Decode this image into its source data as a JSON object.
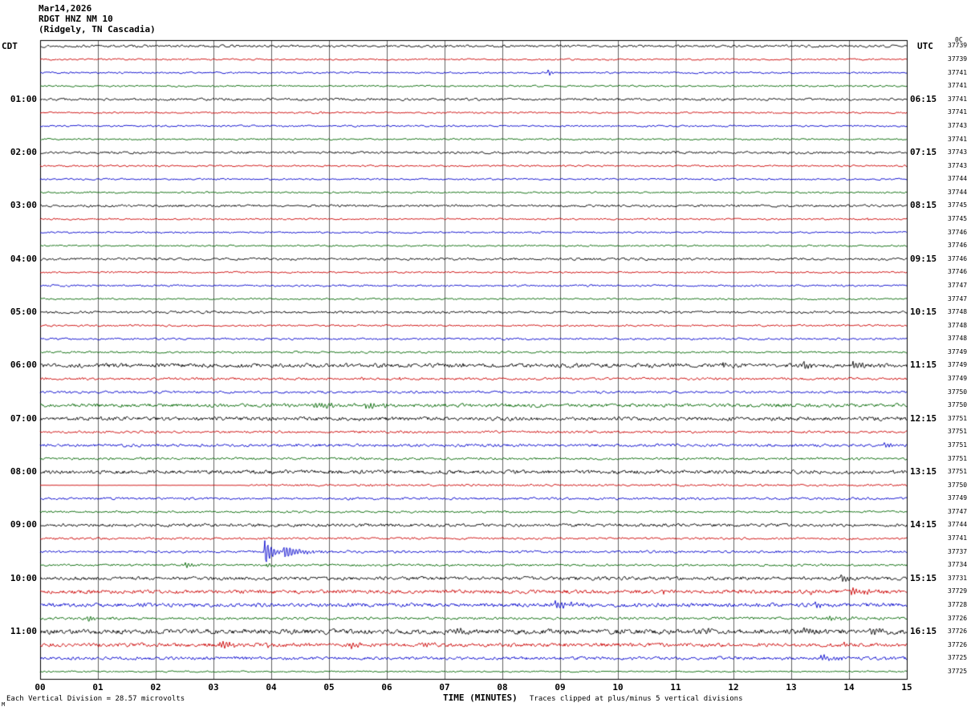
{
  "header": {
    "date_line": "Mar14,2026",
    "station_line": "RDGT HNZ NM 10",
    "location_line": "(Ridgely, TN Cascadia)",
    "left_tz": "CDT",
    "right_tz": "UTC",
    "right_col_header": "0C"
  },
  "footer": {
    "scale_note": "Each Vertical Division =   28.57 microvolts",
    "axis_title": "TIME (MINUTES)",
    "clip_note": "Traces clipped at plus/minus 5 vertical divisions",
    "corner_mark": "M"
  },
  "chart_data": {
    "type": "line",
    "title": "RDGT HNZ NM 10 (Ridgely, TN Cascadia) Mar14,2026",
    "xlabel": "TIME (MINUTES)",
    "x_range": [
      0,
      15
    ],
    "x_ticks": [
      "00",
      "01",
      "02",
      "03",
      "04",
      "05",
      "06",
      "07",
      "08",
      "09",
      "10",
      "11",
      "12",
      "13",
      "14",
      "15"
    ],
    "minutes_per_row": 15,
    "rows_per_hour": 4,
    "microvolts_per_division": 28.57,
    "clip_divisions": 5,
    "left_time_zone": "CDT",
    "right_time_zone": "UTC",
    "colors": {
      "cycle": [
        "#000000",
        "#cc0000",
        "#0000cc",
        "#006600"
      ]
    },
    "rows": [
      {
        "cdt": "",
        "utc": "",
        "count": 37739,
        "noise": 1.4
      },
      {
        "count": 37739,
        "noise": 1.0
      },
      {
        "count": 37741,
        "noise": 1.0,
        "events": [
          [
            8.78,
            8,
            0.04
          ]
        ]
      },
      {
        "count": 37741,
        "noise": 1.0
      },
      {
        "cdt": "01:00",
        "utc": "06:15",
        "count": 37741,
        "noise": 1.4
      },
      {
        "count": 37741,
        "noise": 1.0,
        "events": [
          [
            4.85,
            2.5,
            0.06
          ]
        ]
      },
      {
        "count": 37743,
        "noise": 1.0
      },
      {
        "count": 37741,
        "noise": 1.0
      },
      {
        "cdt": "02:00",
        "utc": "07:15",
        "count": 37743,
        "noise": 1.4
      },
      {
        "count": 37743,
        "noise": 1.0
      },
      {
        "count": 37744,
        "noise": 1.0
      },
      {
        "count": 37744,
        "noise": 1.0
      },
      {
        "cdt": "03:00",
        "utc": "08:15",
        "count": 37745,
        "noise": 1.4
      },
      {
        "count": 37745,
        "noise": 1.0,
        "events": [
          [
            14.3,
            2.5,
            0.05
          ]
        ]
      },
      {
        "count": 37746,
        "noise": 1.0
      },
      {
        "count": 37746,
        "noise": 1.0
      },
      {
        "cdt": "04:00",
        "utc": "09:15",
        "count": 37746,
        "noise": 1.4
      },
      {
        "count": 37746,
        "noise": 1.0
      },
      {
        "count": 37747,
        "noise": 1.1
      },
      {
        "count": 37747,
        "noise": 1.0
      },
      {
        "cdt": "05:00",
        "utc": "10:15",
        "count": 37748,
        "noise": 1.4
      },
      {
        "count": 37748,
        "noise": 1.1
      },
      {
        "count": 37748,
        "noise": 1.2
      },
      {
        "count": 37749,
        "noise": 1.2
      },
      {
        "cdt": "06:00",
        "utc": "11:15",
        "count": 37749,
        "noise": 2.4,
        "events": [
          [
            7.3,
            3.5,
            0.05
          ],
          [
            11.8,
            5,
            0.06
          ],
          [
            13.2,
            10,
            0.07
          ],
          [
            14.05,
            5,
            0.12
          ]
        ]
      },
      {
        "count": 37749,
        "noise": 1.4,
        "events": [
          [
            5.5,
            3.5,
            0.06
          ],
          [
            6.2,
            3,
            0.06
          ]
        ]
      },
      {
        "count": 37750,
        "noise": 1.4
      },
      {
        "count": 37750,
        "noise": 2.0,
        "events": [
          [
            4.7,
            3.5,
            0.5
          ],
          [
            5.6,
            3,
            0.3
          ]
        ]
      },
      {
        "cdt": "07:00",
        "utc": "12:15",
        "count": 37751,
        "noise": 2.2
      },
      {
        "count": 37751,
        "noise": 1.4
      },
      {
        "count": 37751,
        "noise": 1.7,
        "events": [
          [
            14.6,
            4,
            0.08
          ]
        ]
      },
      {
        "count": 37751,
        "noise": 1.4
      },
      {
        "cdt": "08:00",
        "utc": "13:15",
        "count": 37751,
        "noise": 2.2
      },
      {
        "count": 37750,
        "noise": 1.2,
        "flats": [
          [
            0,
            3.5
          ]
        ],
        "events": [
          [
            5.6,
            2,
            0.05
          ]
        ]
      },
      {
        "count": 37749,
        "noise": 1.4
      },
      {
        "count": 37747,
        "noise": 1.2
      },
      {
        "cdt": "09:00",
        "utc": "14:15",
        "count": 37744,
        "noise": 1.8
      },
      {
        "count": 37741,
        "noise": 1.3
      },
      {
        "count": 37737,
        "noise": 1.4,
        "events": [
          [
            3.87,
            21,
            0.12
          ],
          [
            4.2,
            7,
            0.3
          ]
        ]
      },
      {
        "count": 37734,
        "noise": 1.3,
        "events": [
          [
            2.5,
            4.5,
            0.12
          ],
          [
            3.9,
            3.5,
            0.1
          ]
        ]
      },
      {
        "cdt": "10:00",
        "utc": "15:15",
        "count": 37731,
        "noise": 2.0,
        "events": [
          [
            9.0,
            2.5,
            0.1
          ],
          [
            13.85,
            8,
            0.08
          ]
        ]
      },
      {
        "count": 37729,
        "noise": 2.2,
        "events": [
          [
            10.75,
            4.5,
            0.07
          ],
          [
            13.3,
            3.5,
            0.1
          ],
          [
            14.0,
            4.5,
            0.25
          ]
        ]
      },
      {
        "count": 37728,
        "noise": 2.2,
        "events": [
          [
            8.9,
            4,
            0.4
          ],
          [
            13.4,
            3.5,
            0.2
          ]
        ]
      },
      {
        "count": 37726,
        "noise": 1.5,
        "events": [
          [
            0.8,
            3.5,
            0.15
          ],
          [
            13.6,
            2.5,
            0.4
          ]
        ]
      },
      {
        "cdt": "11:00",
        "utc": "16:15",
        "count": 37726,
        "noise": 2.8,
        "events": [
          [
            7.15,
            6,
            0.15
          ],
          [
            10.0,
            3.5,
            0.1
          ],
          [
            11.5,
            4.5,
            0.1
          ],
          [
            13.2,
            5,
            0.15
          ],
          [
            14.35,
            6,
            0.15
          ]
        ]
      },
      {
        "count": 37726,
        "noise": 2.2,
        "events": [
          [
            3.1,
            5,
            0.25
          ],
          [
            3.9,
            3.5,
            0.1
          ],
          [
            5.35,
            5,
            0.15
          ],
          [
            6.6,
            3,
            0.1
          ],
          [
            13.9,
            3.5,
            0.1
          ]
        ]
      },
      {
        "count": 37725,
        "noise": 1.8,
        "events": [
          [
            13.5,
            3.5,
            0.3
          ],
          [
            14.6,
            3,
            0.1
          ]
        ]
      },
      {
        "count": 37725,
        "noise": 0.9
      }
    ]
  }
}
